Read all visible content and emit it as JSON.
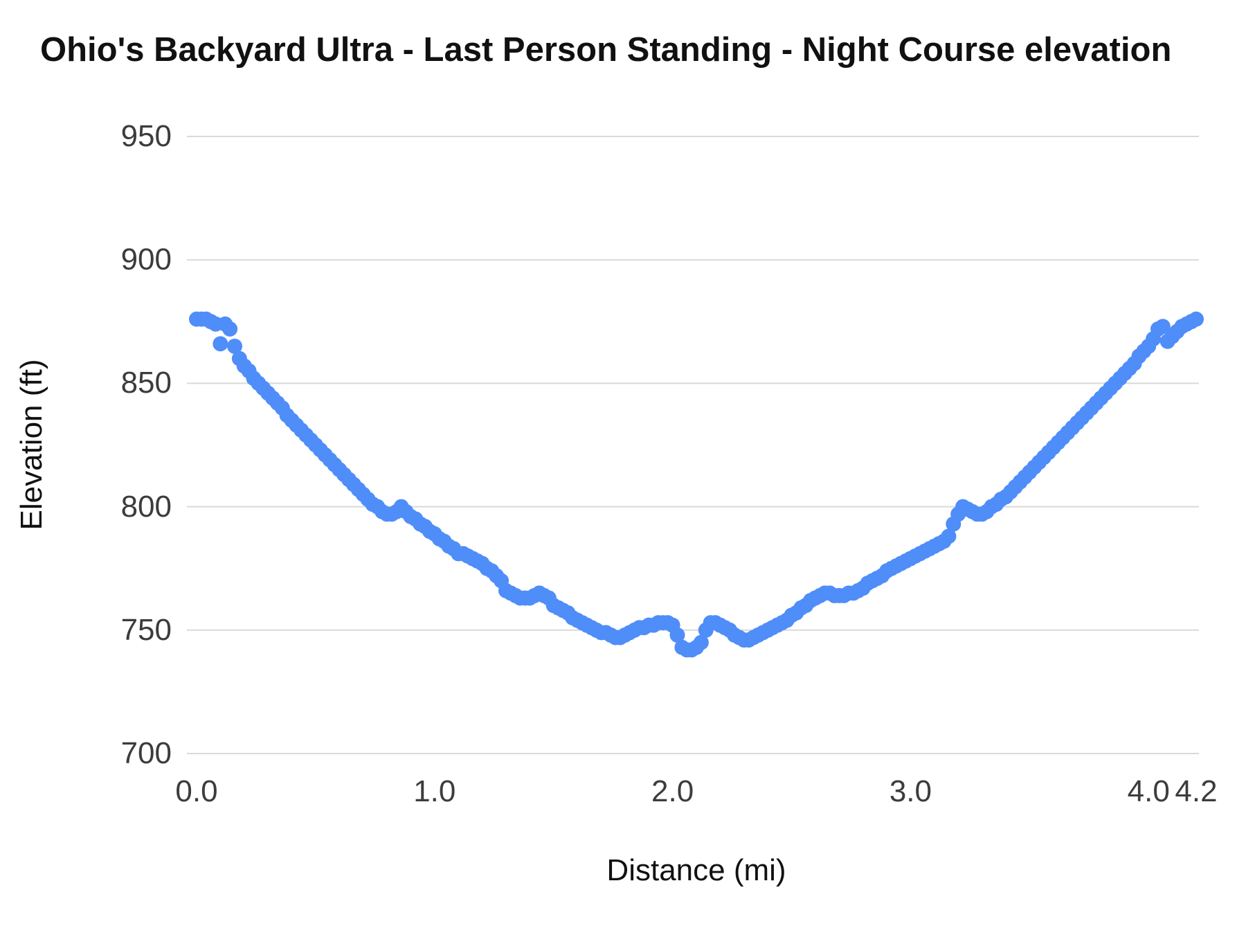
{
  "chart_data": {
    "type": "scatter",
    "title": "Ohio's Backyard Ultra - Last Person Standing - Night Course elevation",
    "xlabel": "Distance (mi)",
    "ylabel": "Elevation (ft)",
    "xlim": [
      0,
      4.2
    ],
    "ylim": [
      700,
      950
    ],
    "grid": "horizontal-only",
    "legend": "none",
    "xticks": [
      {
        "value": 0.0,
        "label": "0.0"
      },
      {
        "value": 1.0,
        "label": "1.0"
      },
      {
        "value": 2.0,
        "label": "2.0"
      },
      {
        "value": 3.0,
        "label": "3.0"
      },
      {
        "value": 4.0,
        "label": "4.0"
      },
      {
        "value": 4.2,
        "label": "4.2"
      }
    ],
    "yticks": [
      {
        "value": 700,
        "label": "700"
      },
      {
        "value": 750,
        "label": "750"
      },
      {
        "value": 800,
        "label": "800"
      },
      {
        "value": 850,
        "label": "850"
      },
      {
        "value": 900,
        "label": "900"
      },
      {
        "value": 950,
        "label": "950"
      }
    ],
    "colors": {
      "point": "#4f8df9",
      "gridline": "#d9d9d9",
      "title": "#111111",
      "tick_label": "#3c3c3c"
    },
    "series": [
      {
        "name": "elevation",
        "points": [
          [
            0.0,
            876
          ],
          [
            0.02,
            876
          ],
          [
            0.04,
            876
          ],
          [
            0.06,
            875
          ],
          [
            0.08,
            874
          ],
          [
            0.1,
            866
          ],
          [
            0.12,
            874
          ],
          [
            0.14,
            872
          ],
          [
            0.16,
            865
          ],
          [
            0.18,
            860
          ],
          [
            0.2,
            857
          ],
          [
            0.22,
            855
          ],
          [
            0.24,
            852
          ],
          [
            0.26,
            850
          ],
          [
            0.28,
            848
          ],
          [
            0.3,
            846
          ],
          [
            0.32,
            844
          ],
          [
            0.34,
            842
          ],
          [
            0.36,
            840
          ],
          [
            0.38,
            837
          ],
          [
            0.4,
            835
          ],
          [
            0.42,
            833
          ],
          [
            0.44,
            831
          ],
          [
            0.46,
            829
          ],
          [
            0.48,
            827
          ],
          [
            0.5,
            825
          ],
          [
            0.52,
            823
          ],
          [
            0.54,
            821
          ],
          [
            0.56,
            819
          ],
          [
            0.58,
            817
          ],
          [
            0.6,
            815
          ],
          [
            0.62,
            813
          ],
          [
            0.64,
            811
          ],
          [
            0.66,
            809
          ],
          [
            0.68,
            807
          ],
          [
            0.7,
            805
          ],
          [
            0.72,
            803
          ],
          [
            0.74,
            801
          ],
          [
            0.76,
            800
          ],
          [
            0.78,
            798
          ],
          [
            0.8,
            797
          ],
          [
            0.82,
            797
          ],
          [
            0.84,
            798
          ],
          [
            0.86,
            800
          ],
          [
            0.88,
            798
          ],
          [
            0.9,
            796
          ],
          [
            0.92,
            795
          ],
          [
            0.94,
            793
          ],
          [
            0.96,
            792
          ],
          [
            0.98,
            790
          ],
          [
            1.0,
            789
          ],
          [
            1.02,
            787
          ],
          [
            1.04,
            786
          ],
          [
            1.06,
            784
          ],
          [
            1.08,
            783
          ],
          [
            1.1,
            781
          ],
          [
            1.12,
            781
          ],
          [
            1.14,
            780
          ],
          [
            1.16,
            779
          ],
          [
            1.18,
            778
          ],
          [
            1.2,
            777
          ],
          [
            1.22,
            775
          ],
          [
            1.24,
            774
          ],
          [
            1.26,
            772
          ],
          [
            1.28,
            770
          ],
          [
            1.3,
            766
          ],
          [
            1.32,
            765
          ],
          [
            1.34,
            764
          ],
          [
            1.36,
            763
          ],
          [
            1.38,
            763
          ],
          [
            1.4,
            763
          ],
          [
            1.42,
            764
          ],
          [
            1.44,
            765
          ],
          [
            1.46,
            764
          ],
          [
            1.48,
            763
          ],
          [
            1.5,
            760
          ],
          [
            1.52,
            759
          ],
          [
            1.54,
            758
          ],
          [
            1.56,
            757
          ],
          [
            1.58,
            755
          ],
          [
            1.6,
            754
          ],
          [
            1.62,
            753
          ],
          [
            1.64,
            752
          ],
          [
            1.66,
            751
          ],
          [
            1.68,
            750
          ],
          [
            1.7,
            749
          ],
          [
            1.72,
            749
          ],
          [
            1.74,
            748
          ],
          [
            1.76,
            747
          ],
          [
            1.78,
            747
          ],
          [
            1.8,
            748
          ],
          [
            1.82,
            749
          ],
          [
            1.84,
            750
          ],
          [
            1.86,
            751
          ],
          [
            1.88,
            751
          ],
          [
            1.9,
            752
          ],
          [
            1.92,
            752
          ],
          [
            1.94,
            753
          ],
          [
            1.96,
            753
          ],
          [
            1.98,
            753
          ],
          [
            2.0,
            752
          ],
          [
            2.02,
            748
          ],
          [
            2.04,
            743
          ],
          [
            2.06,
            742
          ],
          [
            2.08,
            742
          ],
          [
            2.1,
            743
          ],
          [
            2.12,
            745
          ],
          [
            2.14,
            750
          ],
          [
            2.16,
            753
          ],
          [
            2.18,
            753
          ],
          [
            2.2,
            752
          ],
          [
            2.22,
            751
          ],
          [
            2.24,
            750
          ],
          [
            2.26,
            748
          ],
          [
            2.28,
            747
          ],
          [
            2.3,
            746
          ],
          [
            2.32,
            746
          ],
          [
            2.34,
            747
          ],
          [
            2.36,
            748
          ],
          [
            2.38,
            749
          ],
          [
            2.4,
            750
          ],
          [
            2.42,
            751
          ],
          [
            2.44,
            752
          ],
          [
            2.46,
            753
          ],
          [
            2.48,
            754
          ],
          [
            2.5,
            756
          ],
          [
            2.52,
            757
          ],
          [
            2.54,
            759
          ],
          [
            2.56,
            760
          ],
          [
            2.58,
            762
          ],
          [
            2.6,
            763
          ],
          [
            2.62,
            764
          ],
          [
            2.64,
            765
          ],
          [
            2.66,
            765
          ],
          [
            2.68,
            764
          ],
          [
            2.7,
            764
          ],
          [
            2.72,
            764
          ],
          [
            2.74,
            765
          ],
          [
            2.76,
            765
          ],
          [
            2.78,
            766
          ],
          [
            2.8,
            767
          ],
          [
            2.82,
            769
          ],
          [
            2.84,
            770
          ],
          [
            2.86,
            771
          ],
          [
            2.88,
            772
          ],
          [
            2.9,
            774
          ],
          [
            2.92,
            775
          ],
          [
            2.94,
            776
          ],
          [
            2.96,
            777
          ],
          [
            2.98,
            778
          ],
          [
            3.0,
            779
          ],
          [
            3.02,
            780
          ],
          [
            3.04,
            781
          ],
          [
            3.06,
            782
          ],
          [
            3.08,
            783
          ],
          [
            3.1,
            784
          ],
          [
            3.12,
            785
          ],
          [
            3.14,
            786
          ],
          [
            3.16,
            788
          ],
          [
            3.18,
            793
          ],
          [
            3.2,
            797
          ],
          [
            3.22,
            800
          ],
          [
            3.24,
            799
          ],
          [
            3.26,
            798
          ],
          [
            3.28,
            797
          ],
          [
            3.3,
            797
          ],
          [
            3.32,
            798
          ],
          [
            3.34,
            800
          ],
          [
            3.36,
            801
          ],
          [
            3.38,
            803
          ],
          [
            3.4,
            804
          ],
          [
            3.42,
            806
          ],
          [
            3.44,
            808
          ],
          [
            3.46,
            810
          ],
          [
            3.48,
            812
          ],
          [
            3.5,
            814
          ],
          [
            3.52,
            816
          ],
          [
            3.54,
            818
          ],
          [
            3.56,
            820
          ],
          [
            3.58,
            822
          ],
          [
            3.6,
            824
          ],
          [
            3.62,
            826
          ],
          [
            3.64,
            828
          ],
          [
            3.66,
            830
          ],
          [
            3.68,
            832
          ],
          [
            3.7,
            834
          ],
          [
            3.72,
            836
          ],
          [
            3.74,
            838
          ],
          [
            3.76,
            840
          ],
          [
            3.78,
            842
          ],
          [
            3.8,
            844
          ],
          [
            3.82,
            846
          ],
          [
            3.84,
            848
          ],
          [
            3.86,
            850
          ],
          [
            3.88,
            852
          ],
          [
            3.9,
            854
          ],
          [
            3.92,
            856
          ],
          [
            3.94,
            858
          ],
          [
            3.96,
            861
          ],
          [
            3.98,
            863
          ],
          [
            4.0,
            865
          ],
          [
            4.02,
            868
          ],
          [
            4.04,
            872
          ],
          [
            4.06,
            873
          ],
          [
            4.08,
            867
          ],
          [
            4.1,
            869
          ],
          [
            4.12,
            871
          ],
          [
            4.14,
            873
          ],
          [
            4.16,
            874
          ],
          [
            4.18,
            875
          ],
          [
            4.2,
            876
          ]
        ]
      }
    ]
  }
}
